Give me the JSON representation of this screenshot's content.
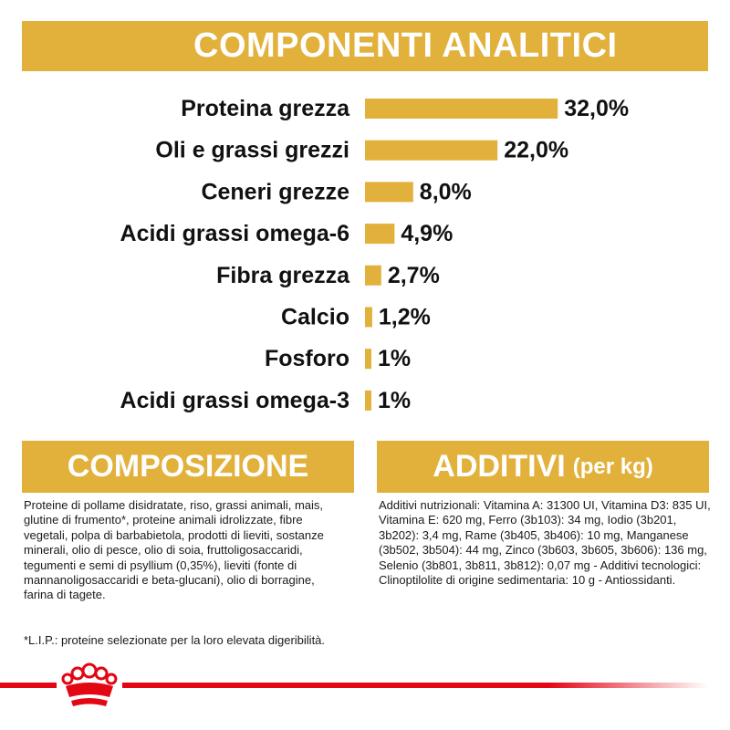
{
  "header": {
    "title": "COMPONENTI ANALITICI"
  },
  "chart_data": {
    "type": "bar",
    "orientation": "horizontal",
    "categories": [
      "Proteina grezza",
      "Oli e grassi grezzi",
      "Ceneri grezze",
      "Acidi grassi omega-6",
      "Fibra grezza",
      "Calcio",
      "Fosforo",
      "Acidi grassi omega-3"
    ],
    "values": [
      32.0,
      22.0,
      8.0,
      4.9,
      2.7,
      1.2,
      1,
      1
    ],
    "value_labels": [
      "32,0%",
      "22,0%",
      "8,0%",
      "4,9%",
      "2,7%",
      "1,2%",
      "1%",
      "1%"
    ],
    "unit": "%",
    "bar_color": "#e2b13c",
    "grid": false,
    "legend": "none"
  },
  "composition": {
    "title": "COMPOSIZIONE",
    "text": "Proteine di pollame disidratate, riso, grassi animali, mais, glutine di frumento*, proteine animali idrolizzate, fibre vegetali, polpa di barbabietola, prodotti di lieviti, sostanze minerali, olio di pesce, olio di soia, fruttoligosaccaridi, tegumenti e semi di psyllium (0,35%), lieviti (fonte di mannanoligosaccaridi e beta-glucani), olio di borragine, farina di tagete.",
    "footnote": "*L.I.P.: proteine selezionate per la loro elevata digeribilità."
  },
  "additives": {
    "title": "ADDITIVI",
    "subtitle": "(per kg)",
    "text": "Additivi nutrizionali: Vitamina A: 31300 UI, Vitamina D3: 835 UI, Vitamina E: 620 mg, Ferro (3b103): 34 mg, Iodio (3b201, 3b202): 3,4 mg, Rame (3b405, 3b406): 10 mg, Manganese (3b502, 3b504): 44 mg, Zinco (3b603, 3b605, 3b606): 136 mg, Selenio (3b801, 3b811, 3b812): 0,07 mg - Additivi tecnologici: Clinoptilolite di origine sedimentaria: 10 g - Antiossidanti."
  },
  "footer": {
    "logo_icon": "crown-icon",
    "accent_color": "#e30613"
  }
}
